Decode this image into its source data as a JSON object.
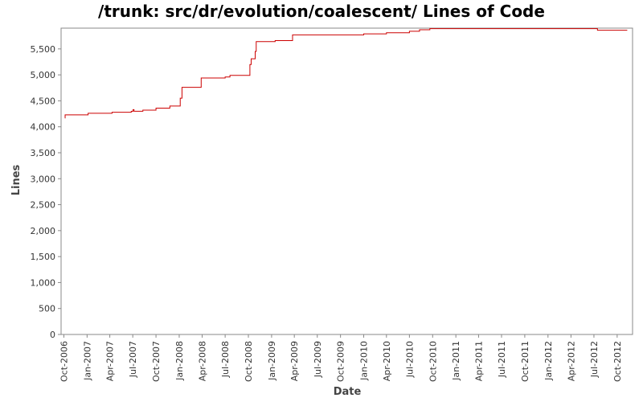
{
  "chart_data": {
    "type": "line",
    "title": "/trunk: src/dr/evolution/coalescent/ Lines of Code",
    "xlabel": "Date",
    "ylabel": "Lines",
    "ylim": [
      0,
      5900
    ],
    "xlim": [
      "2006-09-20",
      "2012-12-01"
    ],
    "grid": false,
    "step": true,
    "y_ticks": [
      0,
      500,
      1000,
      1500,
      2000,
      2500,
      3000,
      3500,
      4000,
      4500,
      5000,
      5500
    ],
    "y_tick_labels": [
      "0",
      "500",
      "1,000",
      "1,500",
      "2,000",
      "2,500",
      "3,000",
      "3,500",
      "4,000",
      "4,500",
      "5,000",
      "5,500"
    ],
    "x_ticks": [
      "2006-10-01",
      "2007-01-01",
      "2007-04-01",
      "2007-07-01",
      "2007-10-01",
      "2008-01-01",
      "2008-04-01",
      "2008-07-01",
      "2008-10-01",
      "2009-01-01",
      "2009-04-01",
      "2009-07-01",
      "2009-10-01",
      "2010-01-01",
      "2010-04-01",
      "2010-07-01",
      "2010-10-01",
      "2011-01-01",
      "2011-04-01",
      "2011-07-01",
      "2011-10-01",
      "2012-01-01",
      "2012-04-01",
      "2012-07-01",
      "2012-10-01"
    ],
    "x_tick_labels": [
      "Oct-2006",
      "Jan-2007",
      "Apr-2007",
      "Jul-2007",
      "Oct-2007",
      "Jan-2008",
      "Apr-2008",
      "Jul-2008",
      "Oct-2008",
      "Jan-2009",
      "Apr-2009",
      "Jul-2009",
      "Oct-2009",
      "Jan-2010",
      "Apr-2010",
      "Jul-2010",
      "Oct-2010",
      "Jan-2011",
      "Apr-2011",
      "Jul-2011",
      "Oct-2011",
      "Jan-2012",
      "Apr-2012",
      "Jul-2012",
      "Oct-2012"
    ],
    "series": [
      {
        "color": "#cc0000",
        "points": [
          [
            "2006-10-05",
            4170
          ],
          [
            "2006-10-06",
            4230
          ],
          [
            "2007-01-05",
            4260
          ],
          [
            "2007-04-10",
            4280
          ],
          [
            "2007-06-25",
            4300
          ],
          [
            "2007-07-02",
            4330
          ],
          [
            "2007-07-06",
            4300
          ],
          [
            "2007-08-10",
            4320
          ],
          [
            "2007-10-01",
            4360
          ],
          [
            "2007-11-25",
            4400
          ],
          [
            "2008-01-05",
            4550
          ],
          [
            "2008-01-12",
            4760
          ],
          [
            "2008-03-28",
            4940
          ],
          [
            "2008-07-01",
            4960
          ],
          [
            "2008-07-20",
            4990
          ],
          [
            "2008-10-07",
            5200
          ],
          [
            "2008-10-12",
            5310
          ],
          [
            "2008-10-28",
            5450
          ],
          [
            "2008-11-01",
            5640
          ],
          [
            "2009-01-15",
            5660
          ],
          [
            "2009-03-25",
            5770
          ],
          [
            "2010-01-01",
            5790
          ],
          [
            "2010-04-01",
            5810
          ],
          [
            "2010-07-01",
            5840
          ],
          [
            "2010-08-10",
            5870
          ],
          [
            "2010-09-20",
            5890
          ],
          [
            "2012-07-15",
            5860
          ],
          [
            "2012-11-10",
            5860
          ]
        ]
      }
    ]
  }
}
